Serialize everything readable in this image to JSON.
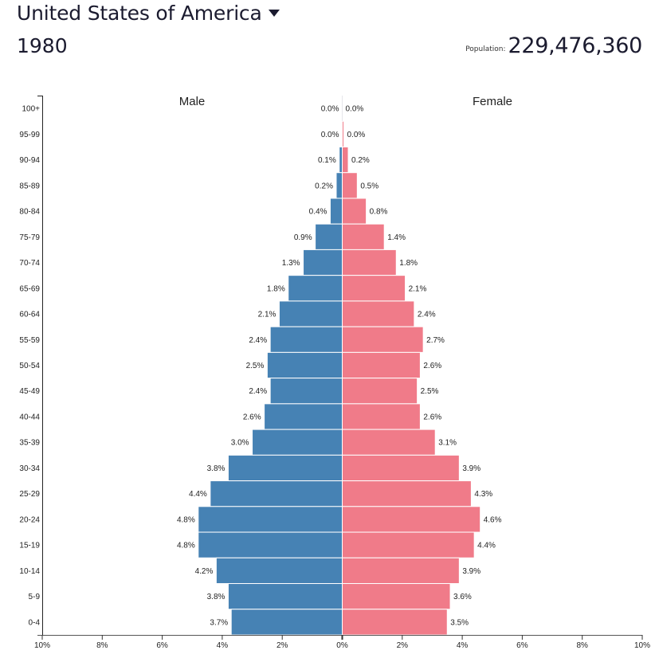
{
  "header": {
    "country": "United States of America",
    "country_dropdown_icon": "caret-down-icon",
    "year": "1980",
    "population_label": "Population:",
    "population_value": "229,476,360"
  },
  "colors": {
    "male": "#4682b4",
    "female": "#f07b89",
    "axis": "#222222",
    "bar_stroke": "#ffffff"
  },
  "chart_data": {
    "type": "bar",
    "orientation": "horizontal-pyramid",
    "title": "United States of America 1980",
    "xlabel": "",
    "ylabel": "",
    "xlim": [
      -10,
      10
    ],
    "x_ticks": [
      "10%",
      "8%",
      "6%",
      "4%",
      "2%",
      "0%",
      "2%",
      "4%",
      "6%",
      "8%",
      "10%"
    ],
    "x_tick_values": [
      -10,
      -8,
      -6,
      -4,
      -2,
      0,
      2,
      4,
      6,
      8,
      10
    ],
    "grid": false,
    "legend": [
      "Male",
      "Female"
    ],
    "legend_placement": "top",
    "categories": [
      "100+",
      "95-99",
      "90-94",
      "85-89",
      "80-84",
      "75-79",
      "70-74",
      "65-69",
      "60-64",
      "55-59",
      "50-54",
      "45-49",
      "40-44",
      "35-39",
      "30-34",
      "25-29",
      "20-24",
      "15-19",
      "10-14",
      "5-9",
      "0-4"
    ],
    "series": [
      {
        "name": "Male",
        "values": [
          0.0,
          0.0,
          0.1,
          0.2,
          0.4,
          0.9,
          1.3,
          1.8,
          2.1,
          2.4,
          2.5,
          2.4,
          2.6,
          3.0,
          3.8,
          4.4,
          4.8,
          4.8,
          4.2,
          3.8,
          3.7
        ],
        "labels": [
          "0.0%",
          "0.0%",
          "0.1%",
          "0.2%",
          "0.4%",
          "0.9%",
          "1.3%",
          "1.8%",
          "2.1%",
          "2.4%",
          "2.5%",
          "2.4%",
          "2.6%",
          "3.0%",
          "3.8%",
          "4.4%",
          "4.8%",
          "4.8%",
          "4.2%",
          "3.8%",
          "3.7%"
        ]
      },
      {
        "name": "Female",
        "values": [
          0.0,
          0.0,
          0.2,
          0.5,
          0.8,
          1.4,
          1.8,
          2.1,
          2.4,
          2.7,
          2.6,
          2.5,
          2.6,
          3.1,
          3.9,
          4.3,
          4.6,
          4.4,
          3.9,
          3.6,
          3.5
        ],
        "labels": [
          "0.0%",
          "0.0%",
          "0.2%",
          "0.5%",
          "0.8%",
          "1.4%",
          "1.8%",
          "2.1%",
          "2.4%",
          "2.7%",
          "2.6%",
          "2.5%",
          "2.6%",
          "3.1%",
          "3.9%",
          "4.3%",
          "4.6%",
          "4.4%",
          "3.9%",
          "3.6%",
          "3.5%"
        ]
      }
    ]
  }
}
